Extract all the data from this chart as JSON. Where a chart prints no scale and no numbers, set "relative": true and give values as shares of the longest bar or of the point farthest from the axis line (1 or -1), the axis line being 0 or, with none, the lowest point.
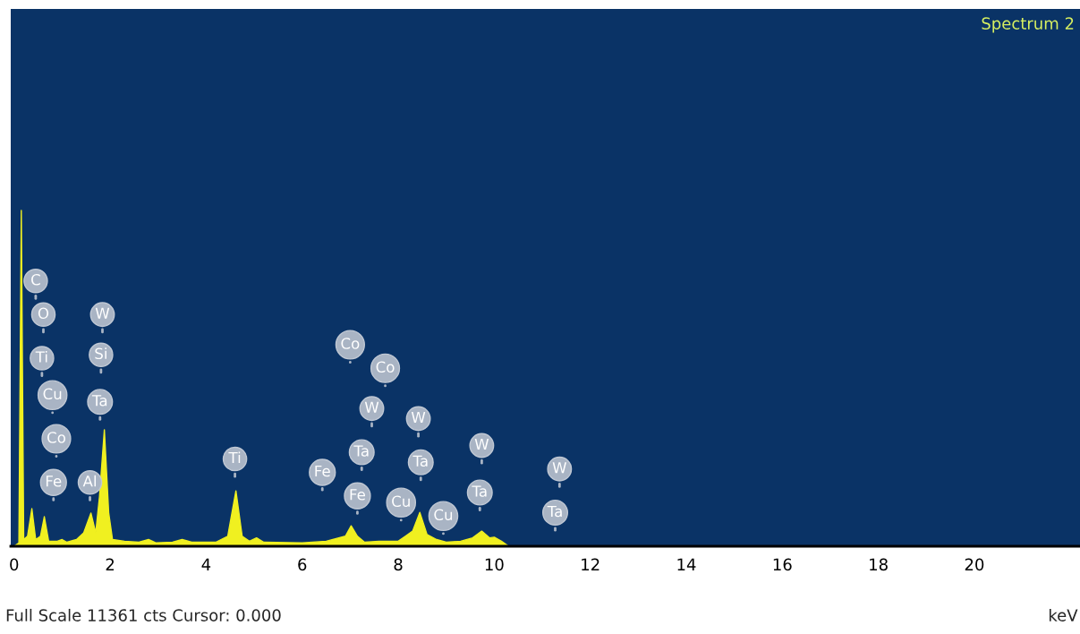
{
  "chart_data": {
    "type": "area",
    "title": "Spectrum 2",
    "xlabel": "keV",
    "relative": true,
    "xlim": [
      -0.07,
      22.2
    ],
    "xticks": [
      0,
      2,
      4,
      6,
      8,
      10,
      12,
      14,
      16,
      18,
      20
    ],
    "grid": false,
    "series": [
      {
        "color": "#f0f020",
        "x": [
          0,
          0.1,
          0.15,
          0.2,
          0.28,
          0.37,
          0.45,
          0.55,
          0.63,
          0.72,
          0.9,
          1.0,
          1.1,
          1.3,
          1.45,
          1.6,
          1.7,
          1.78,
          1.88,
          1.97,
          2.05,
          2.3,
          2.6,
          2.8,
          2.95,
          3.3,
          3.5,
          3.7,
          4.2,
          4.45,
          4.62,
          4.75,
          4.9,
          5.05,
          5.2,
          6.0,
          6.5,
          6.9,
          7.02,
          7.15,
          7.3,
          7.6,
          8.0,
          8.15,
          8.3,
          8.45,
          8.6,
          8.8,
          9.0,
          9.3,
          9.55,
          9.74,
          9.9,
          10.0,
          10.15,
          10.3
        ],
        "values": [
          0,
          0.01,
          1.0,
          0.02,
          0.03,
          0.112,
          0.02,
          0.03,
          0.088,
          0.015,
          0.015,
          0.02,
          0.012,
          0.02,
          0.04,
          0.099,
          0.04,
          0.15,
          0.347,
          0.1,
          0.02,
          0.015,
          0.012,
          0.02,
          0.01,
          0.012,
          0.02,
          0.012,
          0.012,
          0.03,
          0.165,
          0.03,
          0.015,
          0.025,
          0.012,
          0.01,
          0.015,
          0.03,
          0.061,
          0.03,
          0.012,
          0.015,
          0.015,
          0.03,
          0.045,
          0.101,
          0.035,
          0.02,
          0.012,
          0.015,
          0.025,
          0.045,
          0.025,
          0.027,
          0.015,
          0
        ]
      }
    ],
    "annotations": [
      {
        "text": "C",
        "x": 0.45,
        "y": 0.79
      },
      {
        "text": "O",
        "x": 0.61,
        "y": 0.69
      },
      {
        "text": "Ti",
        "x": 0.58,
        "y": 0.56
      },
      {
        "text": "Cu",
        "x": 0.8,
        "y": 0.45
      },
      {
        "text": "Co",
        "x": 0.88,
        "y": 0.32
      },
      {
        "text": "Fe",
        "x": 0.82,
        "y": 0.19
      },
      {
        "text": "Al",
        "x": 1.58,
        "y": 0.19
      },
      {
        "text": "W",
        "x": 1.84,
        "y": 0.69
      },
      {
        "text": "Si",
        "x": 1.81,
        "y": 0.57
      },
      {
        "text": "Ta",
        "x": 1.79,
        "y": 0.43
      },
      {
        "text": "Ti",
        "x": 4.6,
        "y": 0.26
      },
      {
        "text": "Fe",
        "x": 6.42,
        "y": 0.22
      },
      {
        "text": "Co",
        "x": 7.0,
        "y": 0.6
      },
      {
        "text": "Co",
        "x": 7.73,
        "y": 0.53
      },
      {
        "text": "W",
        "x": 7.45,
        "y": 0.41
      },
      {
        "text": "Ta",
        "x": 7.24,
        "y": 0.28
      },
      {
        "text": "Fe",
        "x": 7.15,
        "y": 0.15
      },
      {
        "text": "W",
        "x": 8.42,
        "y": 0.38
      },
      {
        "text": "Ta",
        "x": 8.47,
        "y": 0.25
      },
      {
        "text": "Cu",
        "x": 8.06,
        "y": 0.13
      },
      {
        "text": "Cu",
        "x": 8.94,
        "y": 0.09
      },
      {
        "text": "W",
        "x": 9.74,
        "y": 0.3
      },
      {
        "text": "Ta",
        "x": 9.7,
        "y": 0.16
      },
      {
        "text": "W",
        "x": 11.36,
        "y": 0.23
      },
      {
        "text": "Ta",
        "x": 11.27,
        "y": 0.1
      },
      "Full Scale 11361 cts Cursor: 0.000"
    ]
  }
}
